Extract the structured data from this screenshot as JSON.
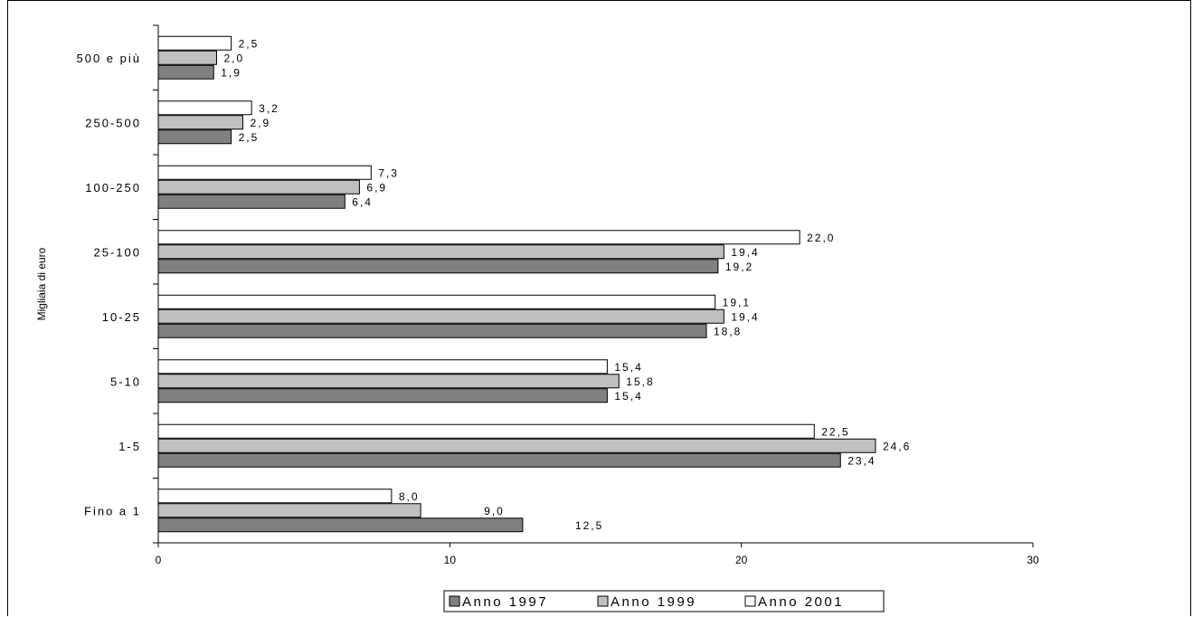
{
  "chart_data": {
    "type": "bar",
    "orientation": "horizontal",
    "ylabel": "Migliaia di euro",
    "xlabel": "",
    "xlim": [
      0,
      30
    ],
    "x_ticks": [
      "0",
      "10",
      "20",
      "30"
    ],
    "grid": false,
    "legend_position": "bottom",
    "categories": [
      "500 e più",
      "250-500",
      "100-250",
      "25-100",
      "10-25",
      "5-10",
      "1-5",
      "Fino a 1"
    ],
    "series": [
      {
        "name": "Anno 2001",
        "color": "#ffffff",
        "values": [
          2.5,
          3.2,
          7.3,
          22.0,
          19.1,
          15.4,
          22.5,
          8.0
        ],
        "labels": [
          "2,5",
          "3,2",
          "7,3",
          "22,0",
          "19,1",
          "15,4",
          "22,5",
          "8,0"
        ]
      },
      {
        "name": "Anno 1999",
        "color": "#c0c0c0",
        "values": [
          2.0,
          2.9,
          6.9,
          19.4,
          19.4,
          15.8,
          24.6,
          9.0
        ],
        "labels": [
          "2,0",
          "2,9",
          "6,9",
          "19,4",
          "19,4",
          "15,8",
          "24,6",
          "9,0"
        ]
      },
      {
        "name": "Anno 1997",
        "color": "#808080",
        "values": [
          1.9,
          2.5,
          6.4,
          19.2,
          18.8,
          15.4,
          23.4,
          12.5
        ],
        "labels": [
          "1,9",
          "2,5",
          "6,4",
          "19,2",
          "18,8",
          "15,4",
          "23,4",
          "12,5"
        ]
      }
    ],
    "legend_order": [
      "Anno 1997",
      "Anno 1999",
      "Anno 2001"
    ]
  }
}
